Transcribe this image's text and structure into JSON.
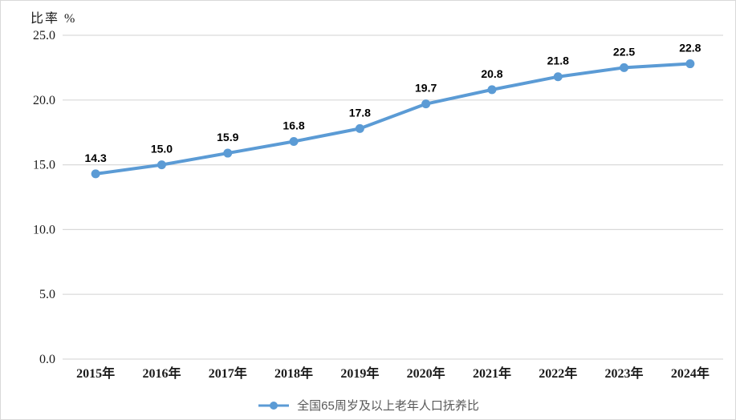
{
  "figure": {
    "border_color": "#d9d9d9",
    "background": "#ffffff"
  },
  "chart_data": {
    "type": "line",
    "title": "",
    "ylabel": "比率 %",
    "xlabel": "",
    "categories": [
      "2015年",
      "2016年",
      "2017年",
      "2018年",
      "2019年",
      "2020年",
      "2021年",
      "2022年",
      "2023年",
      "2024年"
    ],
    "series": [
      {
        "name": "全国65周岁及以上老年人口抚养比",
        "values": [
          14.3,
          15.0,
          15.9,
          16.8,
          17.8,
          19.7,
          20.8,
          21.8,
          22.5,
          22.8
        ]
      }
    ],
    "data_labels": [
      "14.3",
      "15.0",
      "15.9",
      "16.8",
      "17.8",
      "19.7",
      "20.8",
      "21.8",
      "22.5",
      "22.8"
    ],
    "ylim": [
      0,
      25
    ],
    "ytick_step": 5,
    "ytick_labels": [
      "0.0",
      "5.0",
      "10.0",
      "15.0",
      "20.0",
      "25.0"
    ],
    "grid": true,
    "legend_position": "bottom",
    "colors": {
      "line": "#5B9BD5",
      "marker": "#5B9BD5",
      "gridline": "#d9d9d9",
      "axis_text": "#1a1a1a",
      "data_label": "#000000",
      "legend_text": "#595959"
    }
  }
}
